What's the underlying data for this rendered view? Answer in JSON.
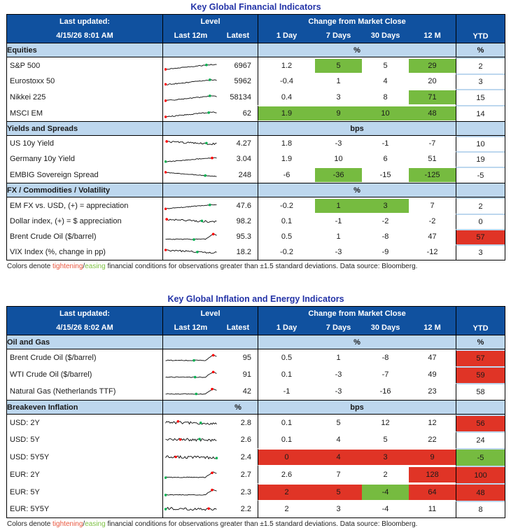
{
  "colors": {
    "header_blue": "#10519F",
    "section_blue": "#BDD7EE",
    "green": "#76BB40",
    "red": "#E03426",
    "title_blue": "#2333A7",
    "spark_line": "#0a0a0a",
    "dot_red": "#FF0000",
    "dot_green": "#00B050"
  },
  "footnote": {
    "pre": "Colors denote ",
    "tightening": "tightening",
    "slash": "/",
    "easing": "easing",
    "post": " financial conditions for observations greater than ±1.5 standard deviations. Data source: Bloomberg."
  },
  "tables": [
    {
      "title": "Key Global Financial Indicators",
      "last_updated_label": "Last updated:",
      "last_updated_value": "4/15/26 8:01 AM",
      "level_label": "Level",
      "last12m_label": "Last 12m",
      "latest_label": "Latest",
      "change_label": "Change from Market Close",
      "day_cols": [
        "1 Day",
        "7 Days",
        "30 Days",
        "12 M"
      ],
      "ytd_label": "YTD",
      "sections": [
        {
          "name": "Equities",
          "latest_unit": "",
          "unit": "%",
          "ytd_unit": "%",
          "rows": [
            {
              "label": "S&P 500",
              "latest": "6967",
              "changes": [
                {
                  "v": "1.2"
                },
                {
                  "v": "5",
                  "bg": "g"
                },
                {
                  "v": "5"
                },
                {
                  "v": "29",
                  "bg": "g"
                }
              ],
              "ytd": {
                "v": "2"
              },
              "spark": {
                "shape": "up",
                "seed": 11,
                "red": 0.01,
                "green": 0.8
              }
            },
            {
              "label": "Eurostoxx 50",
              "latest": "5962",
              "changes": [
                {
                  "v": "-0.4"
                },
                {
                  "v": "1"
                },
                {
                  "v": "4"
                },
                {
                  "v": "20"
                }
              ],
              "ytd": {
                "v": "3"
              },
              "spark": {
                "shape": "up",
                "seed": 12,
                "red": 0.01,
                "green": 0.86
              }
            },
            {
              "label": "Nikkei 225",
              "latest": "58134",
              "changes": [
                {
                  "v": "0.4"
                },
                {
                  "v": "3"
                },
                {
                  "v": "8"
                },
                {
                  "v": "71",
                  "bg": "g"
                }
              ],
              "ytd": {
                "v": "15"
              },
              "spark": {
                "shape": "up",
                "seed": 13,
                "red": 0.01,
                "green": 0.86
              }
            },
            {
              "label": "MSCI EM",
              "latest": "62",
              "changes": [
                {
                  "v": "1.9",
                  "bg": "g"
                },
                {
                  "v": "9",
                  "bg": "g"
                },
                {
                  "v": "10",
                  "bg": "g"
                },
                {
                  "v": "48",
                  "bg": "g"
                }
              ],
              "ytd": {
                "v": "14"
              },
              "spark": {
                "shape": "up",
                "seed": 14,
                "red": 0.01,
                "green": 0.85
              }
            }
          ]
        },
        {
          "name": "Yields and Spreads",
          "latest_unit": "",
          "unit": "bps",
          "ytd_unit": "",
          "rows": [
            {
              "label": "US 10y Yield",
              "latest": "4.27",
              "changes": [
                {
                  "v": "1.8"
                },
                {
                  "v": "-3"
                },
                {
                  "v": "-1"
                },
                {
                  "v": "-7"
                }
              ],
              "ytd": {
                "v": "10"
              },
              "spark": {
                "shape": "downwob",
                "seed": 15,
                "red": 0.03,
                "green": 0.8
              }
            },
            {
              "label": "Germany 10y Yield",
              "latest": "3.04",
              "changes": [
                {
                  "v": "1.9"
                },
                {
                  "v": "10"
                },
                {
                  "v": "6"
                },
                {
                  "v": "51"
                }
              ],
              "ytd": {
                "v": "19"
              },
              "spark": {
                "shape": "upflat",
                "seed": 16,
                "red": 0.9,
                "green": 0.01
              }
            },
            {
              "label": "EMBIG Sovereign Spread",
              "latest": "248",
              "changes": [
                {
                  "v": "-6"
                },
                {
                  "v": "-36",
                  "bg": "g"
                },
                {
                  "v": "-15"
                },
                {
                  "v": "-125",
                  "bg": "g"
                }
              ],
              "ytd": {
                "v": "-5"
              },
              "spark": {
                "shape": "down",
                "seed": 17,
                "red": 0.005,
                "green": 0.78
              }
            }
          ]
        },
        {
          "name": "FX / Commodities / Volatility",
          "latest_unit": "",
          "unit": "%",
          "ytd_unit": "",
          "rows": [
            {
              "label": "EM FX vs. USD, (+) = appreciation",
              "latest": "47.6",
              "changes": [
                {
                  "v": "-0.2"
                },
                {
                  "v": "1",
                  "bg": "g"
                },
                {
                  "v": "3",
                  "bg": "g"
                },
                {
                  "v": "7"
                }
              ],
              "ytd": {
                "v": "2"
              },
              "spark": {
                "shape": "upflat",
                "seed": 18,
                "red": 0.01,
                "green": 0.87
              }
            },
            {
              "label": "Dollar index, (+) = $ appreciation",
              "latest": "98.2",
              "changes": [
                {
                  "v": "0.1"
                },
                {
                  "v": "-1"
                },
                {
                  "v": "-2"
                },
                {
                  "v": "-2"
                }
              ],
              "ytd": {
                "v": "0"
              },
              "spark": {
                "shape": "downwob",
                "seed": 19,
                "red": 0.02,
                "green": 0.72
              }
            },
            {
              "label": "Brent Crude Oil ($/barrel)",
              "latest": "95.3",
              "changes": [
                {
                  "v": "0.5"
                },
                {
                  "v": "1"
                },
                {
                  "v": "-8"
                },
                {
                  "v": "47"
                }
              ],
              "ytd": {
                "v": "57",
                "bg": "r"
              },
              "spark": {
                "shape": "spike",
                "seed": 20,
                "red": 0.93,
                "green": 0.55
              }
            },
            {
              "label": "VIX Index (%, change in pp)",
              "latest": "18.2",
              "changes": [
                {
                  "v": "-0.2"
                },
                {
                  "v": "-3"
                },
                {
                  "v": "-9"
                },
                {
                  "v": "-12"
                }
              ],
              "ytd": {
                "v": "3"
              },
              "spark": {
                "shape": "downwob",
                "seed": 21,
                "red": 0.01,
                "green": 0.62
              }
            }
          ]
        }
      ]
    },
    {
      "title": "Key Global Inflation and Energy Indicators",
      "last_updated_label": "Last updated:",
      "last_updated_value": "4/15/26 8:02 AM",
      "level_label": "Level",
      "last12m_label": "Last 12m",
      "latest_label": "Latest",
      "change_label": "Change from Market Close",
      "day_cols": [
        "1 Day",
        "7 Days",
        "30 Days",
        "12 M"
      ],
      "ytd_label": "YTD",
      "sections": [
        {
          "name": "Oil and Gas",
          "latest_unit": "",
          "unit": "%",
          "ytd_unit": "%",
          "rows": [
            {
              "label": "Brent Crude Oil ($/barrel)",
              "latest": "95",
              "changes": [
                {
                  "v": "0.5"
                },
                {
                  "v": "1"
                },
                {
                  "v": "-8"
                },
                {
                  "v": "47"
                }
              ],
              "ytd": {
                "v": "57",
                "bg": "r"
              },
              "spark": {
                "shape": "spike",
                "seed": 31,
                "red": 0.93,
                "green": 0.55
              }
            },
            {
              "label": "WTI Crude Oil ($/barrel)",
              "latest": "91",
              "changes": [
                {
                  "v": "0.1"
                },
                {
                  "v": "-3"
                },
                {
                  "v": "-7"
                },
                {
                  "v": "49"
                }
              ],
              "ytd": {
                "v": "59",
                "bg": "r"
              },
              "spark": {
                "shape": "spike",
                "seed": 32,
                "red": 0.94,
                "green": 0.58
              }
            },
            {
              "label": "Natural Gas (Netherlands TTF)",
              "latest": "42",
              "changes": [
                {
                  "v": "-1"
                },
                {
                  "v": "-3"
                },
                {
                  "v": "-16"
                },
                {
                  "v": "23"
                }
              ],
              "ytd": {
                "v": "58"
              },
              "spark": {
                "shape": "spike",
                "seed": 33,
                "red": 0.9,
                "green": 0.6
              }
            }
          ]
        },
        {
          "name": "Breakeven Inflation",
          "latest_unit": "%",
          "unit": "bps",
          "ytd_unit": "",
          "rows": [
            {
              "label": "USD: 2Y",
              "latest": "2.8",
              "changes": [
                {
                  "v": "0.1"
                },
                {
                  "v": "5"
                },
                {
                  "v": "12"
                },
                {
                  "v": "12"
                }
              ],
              "ytd": {
                "v": "56",
                "bg": "r"
              },
              "spark": {
                "shape": "wobble",
                "seed": 34,
                "red": 0.25,
                "green": 0.68
              }
            },
            {
              "label": "USD: 5Y",
              "latest": "2.6",
              "changes": [
                {
                  "v": "0.1"
                },
                {
                  "v": "4"
                },
                {
                  "v": "5"
                },
                {
                  "v": "22"
                }
              ],
              "ytd": {
                "v": "24"
              },
              "spark": {
                "shape": "wobble",
                "seed": 35,
                "red": 0.28,
                "green": 0.66
              }
            },
            {
              "label": "USD: 5Y5Y",
              "latest": "2.4",
              "changes": [
                {
                  "v": "0",
                  "bg": "r"
                },
                {
                  "v": "4",
                  "bg": "r"
                },
                {
                  "v": "3",
                  "bg": "r"
                },
                {
                  "v": "9",
                  "bg": "r"
                }
              ],
              "ytd": {
                "v": "-5",
                "bg": "g"
              },
              "spark": {
                "shape": "wobble",
                "seed": 36,
                "red": 0.2,
                "green": 0.99
              }
            },
            {
              "label": "EUR: 2Y",
              "latest": "2.7",
              "changes": [
                {
                  "v": "2.6"
                },
                {
                  "v": "7"
                },
                {
                  "v": "2"
                },
                {
                  "v": "128",
                  "bg": "r"
                }
              ],
              "ytd": {
                "v": "100",
                "bg": "r"
              },
              "spark": {
                "shape": "spike",
                "seed": 37,
                "red": 0.92,
                "green": 0.01
              }
            },
            {
              "label": "EUR: 5Y",
              "latest": "2.3",
              "changes": [
                {
                  "v": "2",
                  "bg": "r"
                },
                {
                  "v": "5",
                  "bg": "r"
                },
                {
                  "v": "-4",
                  "bg": "g"
                },
                {
                  "v": "64",
                  "bg": "r"
                }
              ],
              "ytd": {
                "v": "48",
                "bg": "r"
              },
              "spark": {
                "shape": "spike",
                "seed": 38,
                "red": 0.92,
                "green": 0.01
              }
            },
            {
              "label": "EUR: 5Y5Y",
              "latest": "2.2",
              "changes": [
                {
                  "v": "2"
                },
                {
                  "v": "3"
                },
                {
                  "v": "-4"
                },
                {
                  "v": "11"
                }
              ],
              "ytd": {
                "v": "8"
              },
              "spark": {
                "shape": "wobble",
                "seed": 39,
                "red": 0.85,
                "green": 0.01
              }
            }
          ]
        }
      ]
    }
  ]
}
